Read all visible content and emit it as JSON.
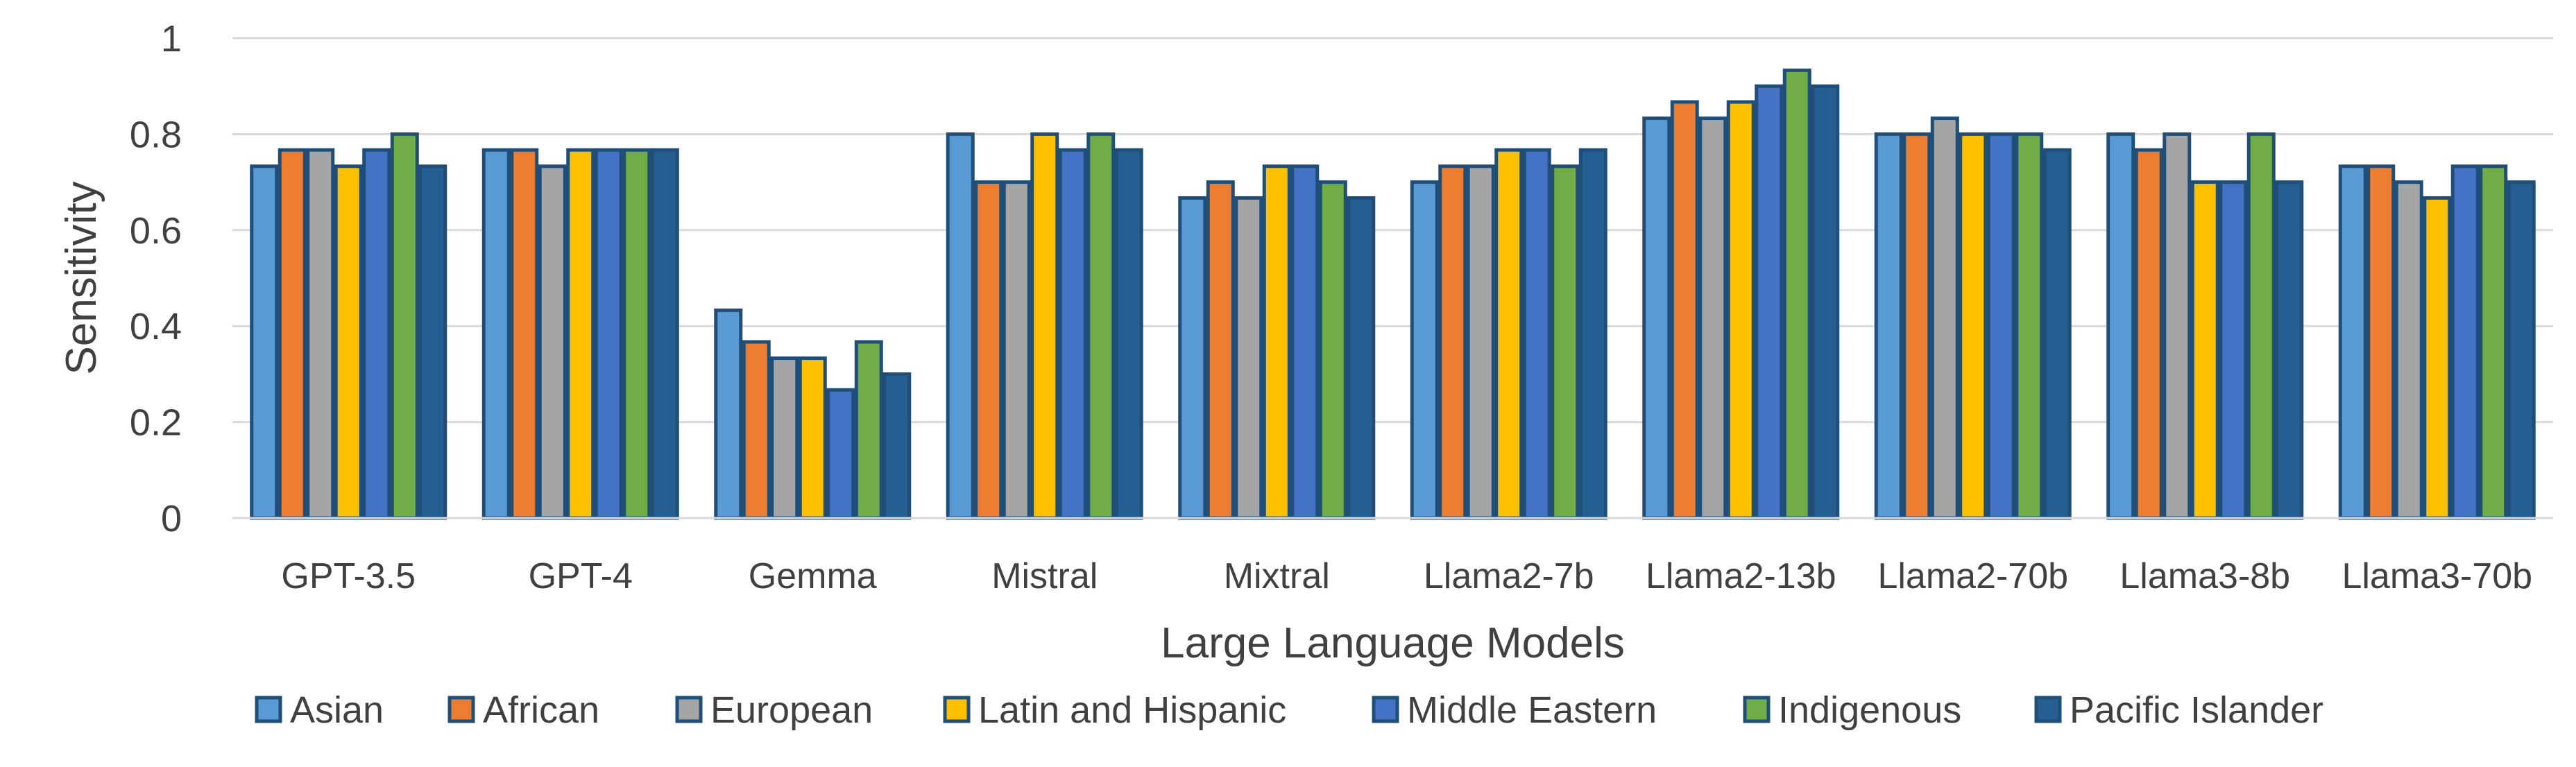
{
  "chart_data": {
    "type": "bar",
    "title": "",
    "xlabel": "Large Language Models",
    "ylabel": "Sensitivity",
    "ylim": [
      0,
      1
    ],
    "yticks": [
      "0",
      "0.2",
      "0.4",
      "0.6",
      "0.8",
      "1"
    ],
    "ytick_values": [
      0,
      0.2,
      0.4,
      0.6,
      0.8,
      1
    ],
    "grid": true,
    "legend_position": "bottom",
    "categories": [
      "GPT-3.5",
      "GPT-4",
      "Gemma",
      "Mistral",
      "Mixtral",
      "Llama2-7b",
      "Llama2-13b",
      "Llama2-70b",
      "Llama3-8b",
      "Llama3-70b"
    ],
    "series": [
      {
        "name": "Asian",
        "color": "#5B9BD5",
        "values": [
          0.733,
          0.767,
          0.433,
          0.8,
          0.667,
          0.7,
          0.833,
          0.8,
          0.8,
          0.733
        ]
      },
      {
        "name": "African",
        "color": "#ED7D31",
        "values": [
          0.767,
          0.767,
          0.367,
          0.7,
          0.7,
          0.733,
          0.867,
          0.8,
          0.767,
          0.733
        ]
      },
      {
        "name": "European",
        "color": "#A5A5A5",
        "values": [
          0.767,
          0.733,
          0.333,
          0.7,
          0.667,
          0.733,
          0.833,
          0.833,
          0.8,
          0.7
        ]
      },
      {
        "name": "Latin and Hispanic",
        "color": "#FFC000",
        "values": [
          0.733,
          0.767,
          0.333,
          0.8,
          0.733,
          0.767,
          0.867,
          0.8,
          0.7,
          0.667
        ]
      },
      {
        "name": "Middle Eastern",
        "color": "#4472C4",
        "values": [
          0.767,
          0.767,
          0.267,
          0.767,
          0.733,
          0.767,
          0.9,
          0.8,
          0.7,
          0.733
        ]
      },
      {
        "name": "Indigenous",
        "color": "#70AD47",
        "values": [
          0.8,
          0.767,
          0.367,
          0.8,
          0.7,
          0.733,
          0.933,
          0.8,
          0.8,
          0.733
        ]
      },
      {
        "name": "Pacific Islander",
        "color": "#255E91",
        "values": [
          0.733,
          0.767,
          0.3,
          0.767,
          0.667,
          0.767,
          0.9,
          0.767,
          0.7,
          0.7
        ]
      }
    ],
    "bar_stroke_color": "#1F4E79",
    "grid_color": "#D9D9D9"
  }
}
